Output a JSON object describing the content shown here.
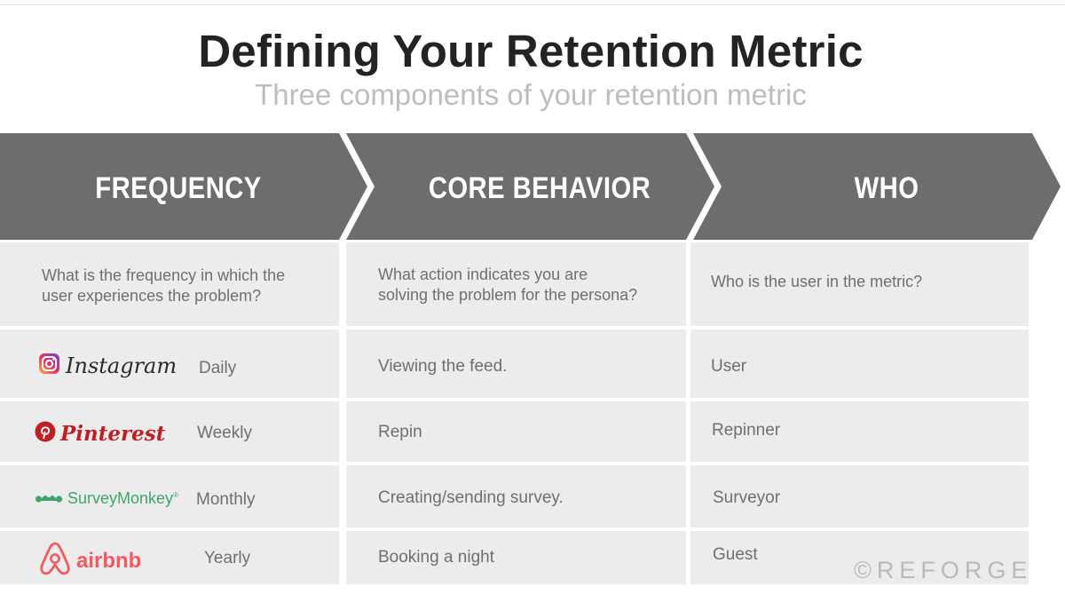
{
  "title": "Defining Your Retention Metric",
  "subtitle": "Three components of your retention metric",
  "columns": [
    {
      "header": "FREQUENCY",
      "question": [
        "What is the frequency in which the",
        "user experiences the problem?"
      ]
    },
    {
      "header": "CORE BEHAVIOR",
      "question": [
        "What action indicates you are",
        "solving the problem for the persona?"
      ]
    },
    {
      "header": "WHO",
      "question": [
        "Who is the user in the metric?"
      ]
    }
  ],
  "rows": [
    {
      "company": "Instagram",
      "logo_icon": "instagram-camera-icon",
      "frequency": "Daily",
      "core_behavior": "Viewing the feed.",
      "who": "User"
    },
    {
      "company": "Pinterest",
      "logo_icon": "pinterest-p-icon",
      "frequency": "Weekly",
      "core_behavior": "Repin",
      "who": "Repinner"
    },
    {
      "company": "SurveyMonkey",
      "logo_icon": "surveymonkey-icon",
      "frequency": "Monthly",
      "core_behavior": "Creating/sending survey.",
      "who": "Surveyor"
    },
    {
      "company": "airbnb",
      "logo_icon": "airbnb-belo-icon",
      "frequency": "Yearly",
      "core_behavior": "Booking a night",
      "who": "Guest"
    }
  ],
  "watermark": "©REFORGE",
  "colors": {
    "arrow_fill": "#6d6d6d",
    "cell_fill": "#ececec",
    "title": "#232323",
    "subtitle": "#bdbdbd",
    "pinterest": "#bd2126",
    "surveymonkey": "#3fa56f",
    "airbnb": "#f25a5f"
  }
}
